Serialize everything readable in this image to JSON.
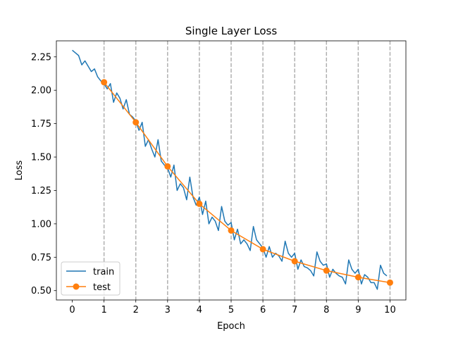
{
  "chart_data": {
    "type": "line",
    "title": "Single Layer Loss",
    "xlabel": "Epoch",
    "ylabel": "Loss",
    "xlim": [
      -0.5,
      10.5
    ],
    "ylim": [
      0.43,
      2.37
    ],
    "xticks": [
      0,
      1,
      2,
      3,
      4,
      5,
      6,
      7,
      8,
      9,
      10
    ],
    "yticks": [
      0.5,
      0.75,
      1.0,
      1.25,
      1.5,
      1.75,
      2.0,
      2.25
    ],
    "ytick_labels": [
      "0.50",
      "0.75",
      "1.00",
      "1.25",
      "1.50",
      "1.75",
      "2.00",
      "2.25"
    ],
    "vlines": [
      1,
      2,
      3,
      4,
      5,
      6,
      7,
      8,
      9,
      10
    ],
    "legend_position": "lower-left",
    "grid": false,
    "series": [
      {
        "name": "train",
        "color": "#1f77b4",
        "marker": "none",
        "x": [
          0.0,
          0.1,
          0.2,
          0.3,
          0.4,
          0.5,
          0.6,
          0.7,
          0.8,
          0.9,
          1.0,
          1.1,
          1.2,
          1.3,
          1.4,
          1.5,
          1.6,
          1.7,
          1.8,
          1.9,
          2.0,
          2.1,
          2.2,
          2.3,
          2.4,
          2.5,
          2.6,
          2.7,
          2.8,
          2.9,
          3.0,
          3.1,
          3.2,
          3.3,
          3.4,
          3.5,
          3.6,
          3.7,
          3.8,
          3.9,
          4.0,
          4.1,
          4.2,
          4.3,
          4.4,
          4.5,
          4.6,
          4.7,
          4.8,
          4.9,
          5.0,
          5.1,
          5.2,
          5.3,
          5.4,
          5.5,
          5.6,
          5.7,
          5.8,
          5.9,
          6.0,
          6.1,
          6.2,
          6.3,
          6.4,
          6.5,
          6.6,
          6.7,
          6.8,
          6.9,
          7.0,
          7.1,
          7.2,
          7.3,
          7.4,
          7.5,
          7.6,
          7.7,
          7.8,
          7.9,
          8.0,
          8.1,
          8.2,
          8.3,
          8.4,
          8.5,
          8.6,
          8.7,
          8.8,
          8.9,
          9.0,
          9.1,
          9.2,
          9.3,
          9.4,
          9.5,
          9.6,
          9.7,
          9.8,
          9.9
        ],
        "values": [
          2.3,
          2.28,
          2.26,
          2.19,
          2.22,
          2.18,
          2.14,
          2.16,
          2.1,
          2.07,
          2.05,
          2.01,
          2.05,
          1.91,
          1.98,
          1.94,
          1.86,
          1.93,
          1.82,
          1.8,
          1.77,
          1.7,
          1.76,
          1.58,
          1.63,
          1.56,
          1.5,
          1.63,
          1.47,
          1.44,
          1.42,
          1.35,
          1.44,
          1.25,
          1.3,
          1.27,
          1.18,
          1.35,
          1.2,
          1.14,
          1.2,
          1.07,
          1.17,
          1.0,
          1.05,
          1.02,
          0.95,
          1.13,
          1.02,
          0.99,
          1.01,
          0.88,
          0.96,
          0.85,
          0.88,
          0.85,
          0.8,
          0.98,
          0.88,
          0.85,
          0.82,
          0.75,
          0.83,
          0.75,
          0.78,
          0.76,
          0.72,
          0.87,
          0.78,
          0.75,
          0.78,
          0.66,
          0.73,
          0.68,
          0.67,
          0.65,
          0.61,
          0.79,
          0.72,
          0.69,
          0.7,
          0.6,
          0.66,
          0.63,
          0.61,
          0.6,
          0.55,
          0.73,
          0.66,
          0.63,
          0.66,
          0.55,
          0.62,
          0.6,
          0.56,
          0.56,
          0.51,
          0.69,
          0.63,
          0.61
        ]
      },
      {
        "name": "test",
        "color": "#ff7f0e",
        "marker": "circle",
        "x": [
          1,
          2,
          3,
          4,
          5,
          6,
          7,
          8,
          9,
          10
        ],
        "values": [
          2.06,
          1.76,
          1.43,
          1.15,
          0.95,
          0.81,
          0.72,
          0.65,
          0.6,
          0.56
        ]
      }
    ]
  }
}
